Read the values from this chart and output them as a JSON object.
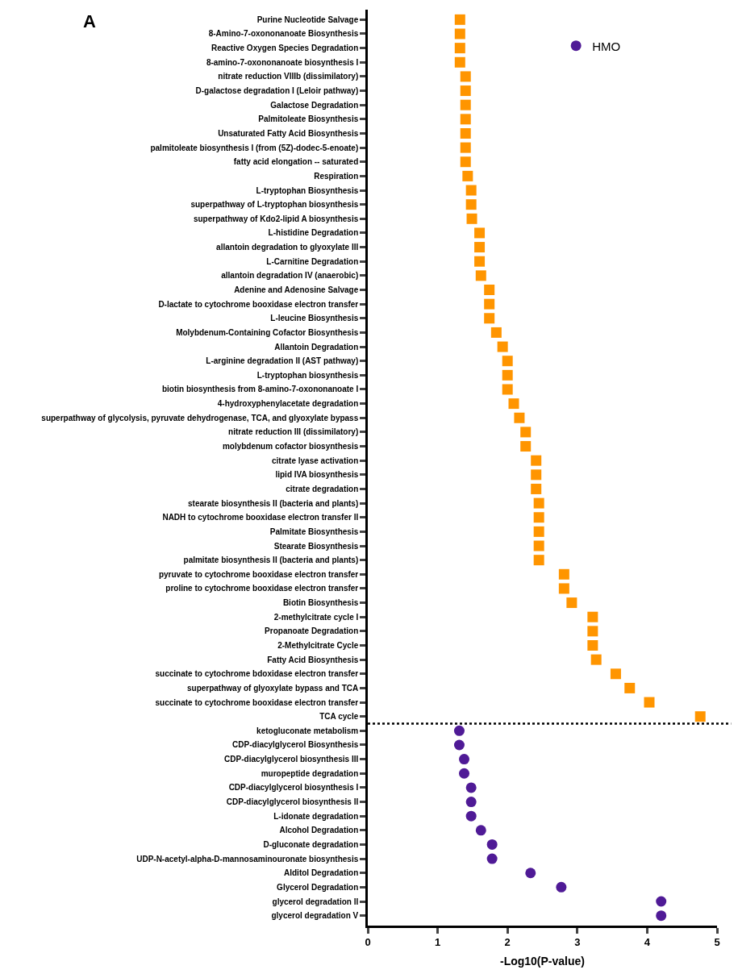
{
  "chart_data": {
    "type": "scatter",
    "xlabel": "-Log10(P-value)",
    "annotations": [
      "A"
    ],
    "categories": [
      "Purine Nucleotide Salvage",
      "8-Amino-7-oxononanoate Biosynthesis",
      "Reactive Oxygen Species Degradation",
      "8-amino-7-oxononanoate biosynthesis I",
      "nitrate reduction VIIIb (dissimilatory)",
      "D-galactose degradation I (Leloir pathway)",
      "Galactose Degradation",
      "Palmitoleate Biosynthesis",
      "Unsaturated Fatty Acid Biosynthesis",
      "palmitoleate biosynthesis I (from (5Z)-dodec-5-enoate)",
      "fatty acid elongation -- saturated",
      "Respiration",
      "L-tryptophan Biosynthesis",
      "superpathway of L-tryptophan biosynthesis",
      "superpathway of Kdo2-lipid A biosynthesis",
      "L-histidine Degradation",
      "allantoin degradation to glyoxylate III",
      "L-Carnitine Degradation",
      "allantoin degradation IV (anaerobic)",
      "Adenine and Adenosine Salvage",
      "D-lactate to cytochrome booxidase electron transfer",
      "L-leucine Biosynthesis",
      "Molybdenum-Containing Cofactor Biosynthesis",
      "Allantoin Degradation",
      "L-arginine degradation II (AST pathway)",
      "L-tryptophan biosynthesis",
      "biotin biosynthesis from 8-amino-7-oxononanoate I",
      "4-hydroxyphenylacetate degradation",
      "superpathway of glycolysis, pyruvate dehydrogenase, TCA, and glyoxylate bypass",
      "nitrate reduction III (dissimilatory)",
      "molybdenum cofactor biosynthesis",
      "citrate lyase activation",
      "lipid IVA biosynthesis",
      "citrate degradation",
      "stearate biosynthesis II (bacteria and plants)",
      "NADH to cytochrome booxidase electron transfer II",
      "Palmitate Biosynthesis",
      "Stearate Biosynthesis",
      "palmitate biosynthesis II (bacteria and plants)",
      "pyruvate to cytochrome booxidase electron transfer",
      "proline to cytochrome booxidase electron transfer",
      "Biotin Biosynthesis",
      "2-methylcitrate cycle I",
      "Propanoate Degradation",
      "2-Methylcitrate Cycle",
      "Fatty Acid Biosynthesis",
      "succinate to cytochrome bdoxidase electron transfer",
      "superpathway of glyoxylate bypass and TCA",
      "succinate to cytochrome booxidase electron transfer",
      "TCA cycle",
      "ketogluconate metabolism",
      "CDP-diacylglycerol Biosynthesis",
      "CDP-diacylglycerol biosynthesis III",
      "muropeptide degradation",
      "CDP-diacylglycerol biosynthesis I",
      "CDP-diacylglycerol biosynthesis II",
      "L-idonate degradation",
      "Alcohol Degradation",
      "D-gluconate degradation",
      "UDP-N-acetyl-alpha-D-mannosaminouronate biosynthesis",
      "Alditol Degradation",
      "Glycerol Degradation",
      "glycerol degradation II",
      "glycerol degradation V"
    ],
    "series": [
      {
        "color": "#ff9500",
        "marker": "square",
        "values": [
          1.32,
          1.32,
          1.32,
          1.32,
          1.4,
          1.4,
          1.4,
          1.4,
          1.4,
          1.4,
          1.4,
          1.43,
          1.48,
          1.48,
          1.49,
          1.6,
          1.6,
          1.6,
          1.62,
          1.74,
          1.74,
          1.74,
          1.84,
          1.93,
          2.0,
          2.0,
          2.0,
          2.09,
          2.17,
          2.26,
          2.26,
          2.41,
          2.41,
          2.41,
          2.45,
          2.45,
          2.45,
          2.45,
          2.45,
          2.81,
          2.81,
          2.92,
          3.22,
          3.22,
          3.22,
          3.27,
          3.55,
          3.75,
          4.03,
          4.76,
          null,
          null,
          null,
          null,
          null,
          null,
          null,
          null,
          null,
          null,
          null,
          null,
          null,
          null
        ]
      },
      {
        "name": "HMO",
        "color": "#4f1a96",
        "marker": "circle",
        "values": [
          null,
          null,
          null,
          null,
          null,
          null,
          null,
          null,
          null,
          null,
          null,
          null,
          null,
          null,
          null,
          null,
          null,
          null,
          null,
          null,
          null,
          null,
          null,
          null,
          null,
          null,
          null,
          null,
          null,
          null,
          null,
          null,
          null,
          null,
          null,
          null,
          null,
          null,
          null,
          null,
          null,
          null,
          null,
          null,
          null,
          null,
          null,
          null,
          null,
          null,
          1.31,
          1.31,
          1.38,
          1.38,
          1.48,
          1.48,
          1.48,
          1.62,
          1.78,
          1.78,
          2.33,
          2.77,
          4.2,
          4.2
        ]
      }
    ],
    "xlim": [
      0,
      5
    ],
    "xticks": [
      0,
      1,
      2,
      3,
      4,
      5
    ],
    "grid": false,
    "legend": "top right",
    "orientation": "horizontal"
  }
}
